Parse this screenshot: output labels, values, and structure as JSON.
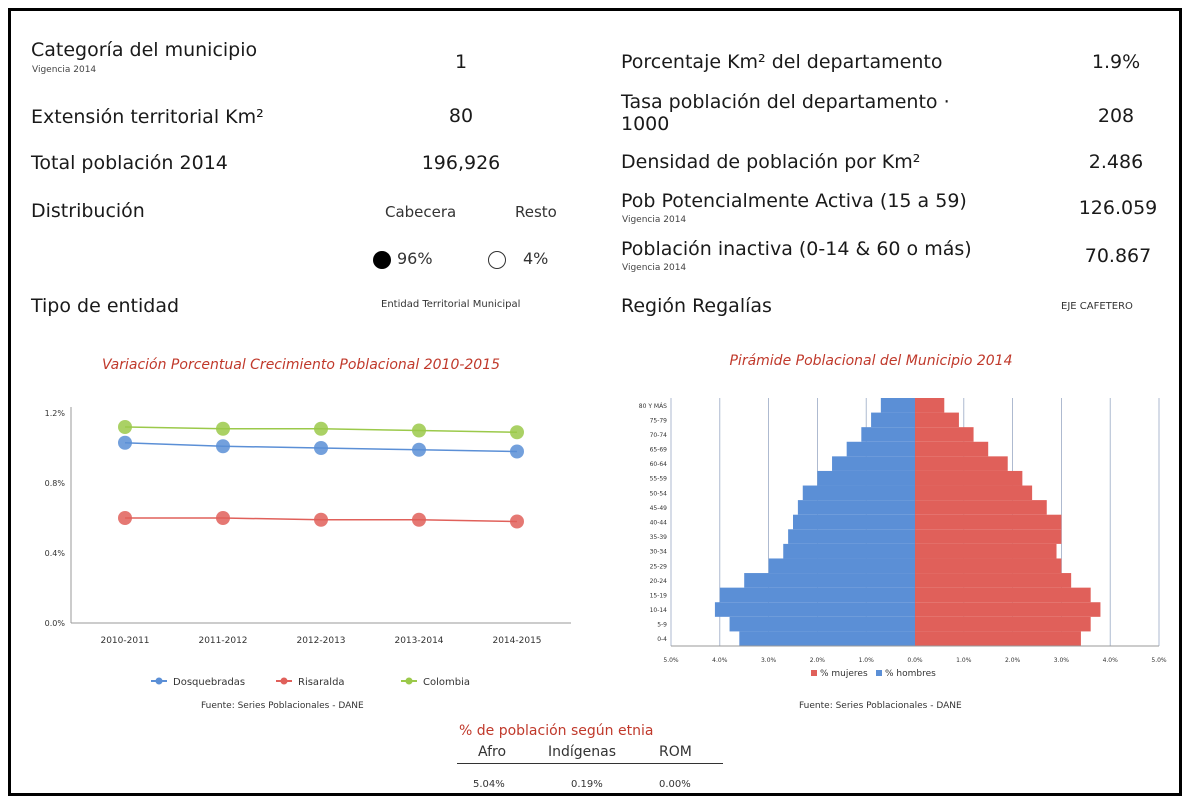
{
  "left": {
    "categoria": {
      "label": "Categoría del municipio",
      "sub": "Vigencia 2014",
      "value": "1"
    },
    "extension": {
      "label": "Extensión territorial Km²",
      "value": "80"
    },
    "total": {
      "label": "Total población 2014",
      "value": "196,926"
    },
    "distribucion": {
      "label": "Distribución",
      "cabecera_label": "Cabecera",
      "resto_label": "Resto",
      "cabecera_value": "96%",
      "resto_value": "4%"
    },
    "tipo": {
      "label": "Tipo de entidad",
      "value": "Entidad Territorial Municipal"
    }
  },
  "right": {
    "porcentaje": {
      "label": "Porcentaje Km² del departamento",
      "value": "1.9%"
    },
    "tasa": {
      "label_line1": "Tasa población del departamento ·",
      "label_line2": "1000",
      "value": "208"
    },
    "densidad": {
      "label": "Densidad de población por Km²",
      "value": "2.486"
    },
    "pob_activa": {
      "label": "Pob Potencialmente Activa (15 a 59)",
      "sub": "Vigencia 2014",
      "value": "126.059"
    },
    "pob_inactiva": {
      "label": "Población inactiva (0-14 & 60 o más)",
      "sub": "Vigencia 2014",
      "value": "70.867"
    },
    "region": {
      "label": "Región Regalías",
      "value": "EJE CAFETERO"
    }
  },
  "colors": {
    "blue": "#5b8fd6",
    "red": "#e0605a",
    "green": "#9bc94a",
    "title": "#c0392b"
  },
  "chart_data": [
    {
      "type": "line",
      "title": "Variación Porcentual Crecimiento Poblacional 2010-2015",
      "categories": [
        "2010-2011",
        "2011-2012",
        "2012-2013",
        "2013-2014",
        "2014-2015"
      ],
      "ylim": [
        0,
        1.2
      ],
      "yticks": [
        "0.0%",
        "0.4%",
        "0.8%",
        "1.2%"
      ],
      "series": [
        {
          "name": "Dosquebradas",
          "color": "#5b8fd6",
          "values": [
            1.03,
            1.01,
            1.0,
            0.99,
            0.98
          ]
        },
        {
          "name": "Risaralda",
          "color": "#e0605a",
          "values": [
            0.6,
            0.6,
            0.59,
            0.59,
            0.58
          ]
        },
        {
          "name": "Colombia",
          "color": "#9bc94a",
          "values": [
            1.12,
            1.11,
            1.11,
            1.1,
            1.09
          ]
        }
      ],
      "grid": false,
      "legend": "bottom",
      "source": "Fuente: Series Poblacionales - DANE"
    },
    {
      "type": "bar",
      "title": "Pirámide Poblacional del Municipio 2014",
      "categories": [
        "0-4",
        "5-9",
        "10-14",
        "15-19",
        "20-24",
        "25-29",
        "30-34",
        "35-39",
        "40-44",
        "45-49",
        "50-54",
        "55-59",
        "60-64",
        "65-69",
        "70-74",
        "75-79",
        "80 Y MÁS"
      ],
      "xticks": [
        "5.0%",
        "4.0%",
        "3.0%",
        "2.0%",
        "1.0%",
        "0.0%",
        "1.0%",
        "2.0%",
        "3.0%",
        "4.0%",
        "5.0%"
      ],
      "xlim": [
        -5,
        5
      ],
      "series": [
        {
          "name": "% hombres",
          "color": "#5b8fd6",
          "values": [
            3.6,
            3.8,
            4.1,
            4.0,
            3.5,
            3.0,
            2.7,
            2.6,
            2.5,
            2.4,
            2.3,
            2.0,
            1.7,
            1.4,
            1.1,
            0.9,
            0.7
          ]
        },
        {
          "name": "% mujeres",
          "color": "#e0605a",
          "values": [
            3.4,
            3.6,
            3.8,
            3.6,
            3.2,
            3.0,
            2.9,
            3.0,
            3.0,
            2.7,
            2.4,
            2.2,
            1.9,
            1.5,
            1.2,
            0.9,
            0.6
          ]
        }
      ],
      "grid": true,
      "legend": "bottom",
      "source": "Fuente: Series Poblacionales - DANE"
    }
  ],
  "etnia": {
    "title": "% de población según etnia",
    "headers": [
      "Afro",
      "Indígenas",
      "ROM"
    ],
    "values": [
      "5.04%",
      "0.19%",
      "0.00%"
    ]
  }
}
